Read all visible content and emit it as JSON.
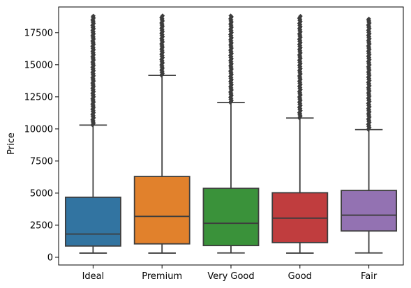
{
  "chart_data": {
    "type": "box",
    "ylabel": "Price",
    "xlabel": "",
    "categories": [
      "Ideal",
      "Premium",
      "Very Good",
      "Good",
      "Fair"
    ],
    "colors": [
      "#3274a1",
      "#e1812c",
      "#3a923a",
      "#c03d3e",
      "#9372b2"
    ],
    "ylim": [
      -600,
      19500
    ],
    "yticks": [
      0,
      2500,
      5000,
      7500,
      10000,
      12500,
      15000,
      17500
    ],
    "ytick_labels": [
      "0",
      "2500",
      "5000",
      "7500",
      "10000",
      "12500",
      "15000",
      "17500"
    ],
    "boxes": [
      {
        "category": "Ideal",
        "whisker_low": 326,
        "q1": 878,
        "median": 1810,
        "q3": 4678,
        "whisker_high": 10300,
        "outlier_min": 10300,
        "outlier_max": 18806
      },
      {
        "category": "Premium",
        "whisker_low": 326,
        "q1": 1046,
        "median": 3185,
        "q3": 6296,
        "whisker_high": 14171,
        "outlier_min": 14171,
        "outlier_max": 18823
      },
      {
        "category": "Very Good",
        "whisker_low": 336,
        "q1": 912,
        "median": 2648,
        "q3": 5373,
        "whisker_high": 12057,
        "outlier_min": 12057,
        "outlier_max": 18818
      },
      {
        "category": "Good",
        "whisker_low": 327,
        "q1": 1145,
        "median": 3050,
        "q3": 5028,
        "whisker_high": 10850,
        "outlier_min": 10850,
        "outlier_max": 18788
      },
      {
        "category": "Fair",
        "whisker_low": 337,
        "q1": 2050,
        "median": 3282,
        "q3": 5206,
        "whisker_high": 9950,
        "outlier_min": 9950,
        "outlier_max": 18574
      }
    ]
  }
}
